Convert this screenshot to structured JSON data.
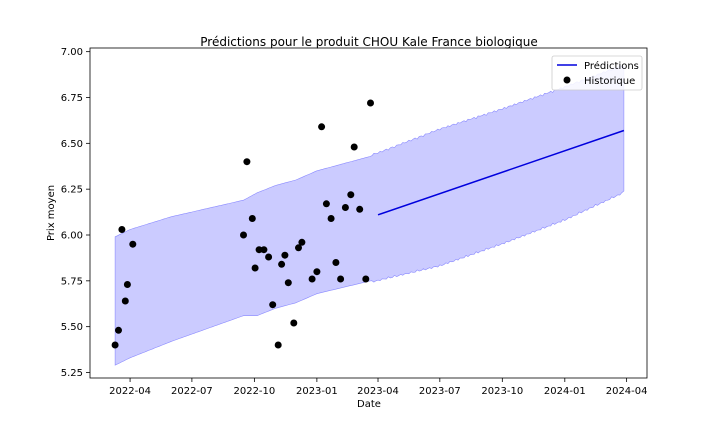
{
  "chart_data": {
    "type": "line",
    "title": "Prédictions pour le produit CHOU Kale France biologique",
    "xlabel": "Date",
    "ylabel": "Prix moyen",
    "ylim": [
      5.22,
      7.02
    ],
    "xlim": [
      "2022-02-01",
      "2024-05-01"
    ],
    "yticks": [
      5.25,
      5.5,
      5.75,
      6.0,
      6.25,
      6.5,
      6.75,
      7.0
    ],
    "yticklabels": [
      "5.25",
      "5.50",
      "5.75",
      "6.00",
      "6.25",
      "6.50",
      "6.75",
      "7.00"
    ],
    "xticks": [
      "2022-04-01",
      "2022-07-01",
      "2022-10-01",
      "2023-01-01",
      "2023-04-01",
      "2023-07-01",
      "2023-10-01",
      "2024-01-01",
      "2024-04-01"
    ],
    "xticklabels": [
      "2022-04",
      "2022-07",
      "2022-10",
      "2023-01",
      "2023-04",
      "2023-07",
      "2023-10",
      "2024-01",
      "2024-04"
    ],
    "grid": false,
    "legend_position": "top-right",
    "colors": {
      "prediction": "#0000dd",
      "band_fill": "#b9b9ff",
      "band_edge": "#8a8aff",
      "history": "#000000"
    },
    "series": [
      {
        "name": "Prédictions",
        "kind": "line",
        "x": [
          "2023-04-01",
          "2024-03-28"
        ],
        "y": [
          6.11,
          6.57
        ]
      },
      {
        "name": "Historique",
        "kind": "scatter",
        "points": [
          [
            "2022-03-10",
            5.4
          ],
          [
            "2022-03-15",
            5.48
          ],
          [
            "2022-03-20",
            6.03
          ],
          [
            "2022-03-25",
            5.64
          ],
          [
            "2022-03-28",
            5.73
          ],
          [
            "2022-04-05",
            5.95
          ],
          [
            "2022-09-15",
            6.0
          ],
          [
            "2022-09-20",
            6.4
          ],
          [
            "2022-09-28",
            6.09
          ],
          [
            "2022-10-02",
            5.82
          ],
          [
            "2022-10-08",
            5.92
          ],
          [
            "2022-10-15",
            5.92
          ],
          [
            "2022-10-22",
            5.88
          ],
          [
            "2022-10-28",
            5.62
          ],
          [
            "2022-11-05",
            5.4
          ],
          [
            "2022-11-10",
            5.84
          ],
          [
            "2022-11-15",
            5.89
          ],
          [
            "2022-11-20",
            5.74
          ],
          [
            "2022-11-28",
            5.52
          ],
          [
            "2022-12-05",
            5.93
          ],
          [
            "2022-12-10",
            5.96
          ],
          [
            "2022-12-25",
            5.76
          ],
          [
            "2023-01-01",
            5.8
          ],
          [
            "2023-01-08",
            6.59
          ],
          [
            "2023-01-15",
            6.17
          ],
          [
            "2023-01-22",
            6.09
          ],
          [
            "2023-01-29",
            5.85
          ],
          [
            "2023-02-05",
            5.76
          ],
          [
            "2023-02-12",
            6.15
          ],
          [
            "2023-02-20",
            6.22
          ],
          [
            "2023-02-25",
            6.48
          ],
          [
            "2023-03-05",
            6.14
          ],
          [
            "2023-03-14",
            5.76
          ],
          [
            "2023-03-21",
            6.72
          ]
        ]
      }
    ],
    "interval": {
      "lower": [
        [
          "2022-03-10",
          5.29
        ],
        [
          "2022-04-01",
          5.33
        ],
        [
          "2022-06-01",
          5.42
        ],
        [
          "2022-09-15",
          5.56
        ],
        [
          "2022-10-05",
          5.56
        ],
        [
          "2022-11-01",
          5.6
        ],
        [
          "2022-12-01",
          5.63
        ],
        [
          "2023-01-01",
          5.68
        ],
        [
          "2023-04-01",
          5.76
        ],
        [
          "2023-07-01",
          5.84
        ],
        [
          "2023-10-01",
          5.96
        ],
        [
          "2024-01-01",
          6.09
        ],
        [
          "2024-03-28",
          6.24
        ]
      ],
      "upper": [
        [
          "2022-03-10",
          5.99
        ],
        [
          "2022-04-01",
          6.03
        ],
        [
          "2022-06-01",
          6.1
        ],
        [
          "2022-09-15",
          6.19
        ],
        [
          "2022-10-05",
          6.23
        ],
        [
          "2022-11-01",
          6.27
        ],
        [
          "2022-12-01",
          6.3
        ],
        [
          "2023-01-01",
          6.35
        ],
        [
          "2023-04-01",
          6.44
        ],
        [
          "2023-07-01",
          6.57
        ],
        [
          "2023-10-01",
          6.68
        ],
        [
          "2024-01-01",
          6.8
        ],
        [
          "2024-03-28",
          6.92
        ]
      ]
    }
  }
}
